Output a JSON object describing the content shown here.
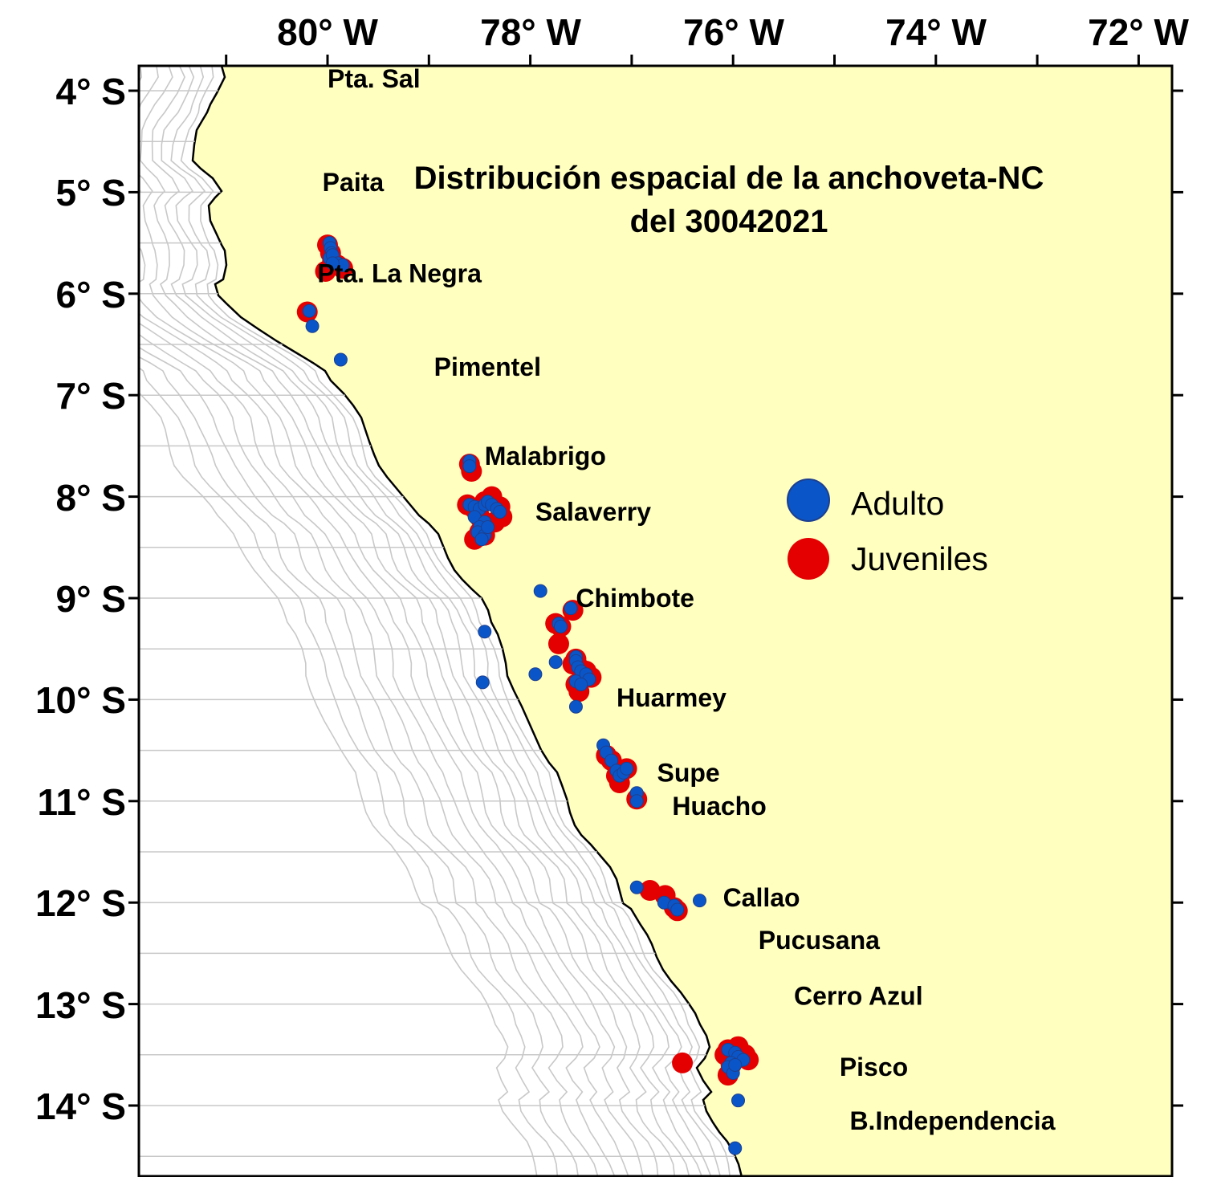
{
  "title": {
    "line1": "Distribución espacial de la anchoveta-NC",
    "line2": "del 30042021"
  },
  "axes": {
    "lon_labels": [
      "80° W",
      "78° W",
      "76° W",
      "74° W",
      "72° W"
    ],
    "lat_labels": [
      "4° S",
      "5° S",
      "6° S",
      "7° S",
      "8° S",
      "9° S",
      "10° S",
      "11° S",
      "12° S",
      "13° S",
      "14° S"
    ]
  },
  "places": [
    {
      "name": "Pta. Sal",
      "lon": -80.0,
      "lat": -3.88
    },
    {
      "name": "Paita",
      "lon": -80.05,
      "lat": -4.9
    },
    {
      "name": "Pta. La Negra",
      "lon": -80.1,
      "lat": -5.8
    },
    {
      "name": "Pimentel",
      "lon": -78.95,
      "lat": -6.72
    },
    {
      "name": "Malabrigo",
      "lon": -78.45,
      "lat": -7.6
    },
    {
      "name": "Salaverry",
      "lon": -77.95,
      "lat": -8.15
    },
    {
      "name": "Chimbote",
      "lon": -77.55,
      "lat": -9.0
    },
    {
      "name": "Huarmey",
      "lon": -77.15,
      "lat": -9.98
    },
    {
      "name": "Supe",
      "lon": -76.75,
      "lat": -10.72
    },
    {
      "name": "Huacho",
      "lon": -76.6,
      "lat": -11.05
    },
    {
      "name": "Callao",
      "lon": -76.1,
      "lat": -11.95
    },
    {
      "name": "Pucusana",
      "lon": -75.75,
      "lat": -12.37
    },
    {
      "name": "Cerro Azul",
      "lon": -75.4,
      "lat": -12.92
    },
    {
      "name": "Pisco",
      "lon": -74.95,
      "lat": -13.62
    },
    {
      "name": "B.Independencia",
      "lon": -74.85,
      "lat": -14.15
    }
  ],
  "legend": {
    "adult_label": "Adulto",
    "juvenile_label": "Juveniles"
  },
  "colors": {
    "land": "#ffffc0",
    "adult": "#0a56c8",
    "adult_outline": "#1d3f8f",
    "juvenile": "#e40000",
    "contour": "#c8c8c8"
  },
  "observations": {
    "juveniles": [
      [
        -80.0,
        -5.52
      ],
      [
        -79.97,
        -5.6
      ],
      [
        -79.95,
        -5.68
      ],
      [
        -79.9,
        -5.72
      ],
      [
        -79.85,
        -5.75
      ],
      [
        -80.02,
        -5.78
      ],
      [
        -80.2,
        -6.18
      ],
      [
        -78.6,
        -7.68
      ],
      [
        -78.58,
        -7.75
      ],
      [
        -78.62,
        -8.08
      ],
      [
        -78.55,
        -8.12
      ],
      [
        -78.5,
        -8.2
      ],
      [
        -78.45,
        -8.05
      ],
      [
        -78.38,
        -8.0
      ],
      [
        -78.3,
        -8.1
      ],
      [
        -78.28,
        -8.2
      ],
      [
        -78.35,
        -8.25
      ],
      [
        -78.5,
        -8.35
      ],
      [
        -78.55,
        -8.42
      ],
      [
        -78.45,
        -8.38
      ],
      [
        -77.58,
        -9.12
      ],
      [
        -77.75,
        -9.25
      ],
      [
        -77.7,
        -9.28
      ],
      [
        -77.72,
        -9.45
      ],
      [
        -77.55,
        -9.6
      ],
      [
        -77.58,
        -9.65
      ],
      [
        -77.5,
        -9.7
      ],
      [
        -77.45,
        -9.72
      ],
      [
        -77.4,
        -9.78
      ],
      [
        -77.55,
        -9.85
      ],
      [
        -77.52,
        -9.92
      ],
      [
        -77.25,
        -10.55
      ],
      [
        -77.2,
        -10.6
      ],
      [
        -77.1,
        -10.7
      ],
      [
        -77.15,
        -10.75
      ],
      [
        -77.12,
        -10.82
      ],
      [
        -77.05,
        -10.68
      ],
      [
        -76.95,
        -10.98
      ],
      [
        -76.82,
        -11.88
      ],
      [
        -76.67,
        -11.93
      ],
      [
        -76.58,
        -12.05
      ],
      [
        -76.55,
        -12.08
      ],
      [
        -76.5,
        -13.58
      ],
      [
        -76.05,
        -13.45
      ],
      [
        -75.95,
        -13.42
      ],
      [
        -75.88,
        -13.5
      ],
      [
        -75.85,
        -13.55
      ],
      [
        -76.02,
        -13.6
      ],
      [
        -76.08,
        -13.5
      ],
      [
        -76.05,
        -13.7
      ]
    ],
    "adults": [
      [
        -79.98,
        -5.5
      ],
      [
        -79.97,
        -5.55
      ],
      [
        -79.96,
        -5.6
      ],
      [
        -79.98,
        -5.65
      ],
      [
        -79.95,
        -5.62
      ],
      [
        -79.9,
        -5.7
      ],
      [
        -79.85,
        -5.72
      ],
      [
        -79.95,
        -5.7
      ],
      [
        -80.18,
        -6.17
      ],
      [
        -80.15,
        -6.32
      ],
      [
        -79.87,
        -6.65
      ],
      [
        -78.6,
        -7.65
      ],
      [
        -78.6,
        -7.7
      ],
      [
        -78.6,
        -8.08
      ],
      [
        -78.55,
        -8.1
      ],
      [
        -78.5,
        -8.12
      ],
      [
        -78.45,
        -8.08
      ],
      [
        -78.42,
        -8.05
      ],
      [
        -78.38,
        -8.08
      ],
      [
        -78.33,
        -8.12
      ],
      [
        -78.3,
        -8.15
      ],
      [
        -78.55,
        -8.2
      ],
      [
        -78.45,
        -8.25
      ],
      [
        -78.5,
        -8.3
      ],
      [
        -78.52,
        -8.35
      ],
      [
        -78.45,
        -8.38
      ],
      [
        -78.48,
        -8.42
      ],
      [
        -78.42,
        -8.3
      ],
      [
        -77.9,
        -8.93
      ],
      [
        -77.6,
        -9.1
      ],
      [
        -77.72,
        -9.25
      ],
      [
        -77.7,
        -9.28
      ],
      [
        -78.45,
        -9.33
      ],
      [
        -78.47,
        -9.83
      ],
      [
        -77.95,
        -9.75
      ],
      [
        -77.75,
        -9.63
      ],
      [
        -77.55,
        -9.58
      ],
      [
        -77.55,
        -9.62
      ],
      [
        -77.53,
        -9.68
      ],
      [
        -77.5,
        -9.72
      ],
      [
        -77.45,
        -9.75
      ],
      [
        -77.42,
        -9.8
      ],
      [
        -77.55,
        -9.82
      ],
      [
        -77.5,
        -9.85
      ],
      [
        -77.55,
        -10.07
      ],
      [
        -77.28,
        -10.45
      ],
      [
        -77.25,
        -10.52
      ],
      [
        -77.2,
        -10.6
      ],
      [
        -77.15,
        -10.7
      ],
      [
        -77.12,
        -10.75
      ],
      [
        -77.08,
        -10.72
      ],
      [
        -77.05,
        -10.68
      ],
      [
        -76.95,
        -10.92
      ],
      [
        -76.95,
        -11.0
      ],
      [
        -76.95,
        -11.85
      ],
      [
        -76.68,
        -12.0
      ],
      [
        -76.58,
        -12.03
      ],
      [
        -76.55,
        -12.07
      ],
      [
        -76.33,
        -11.98
      ],
      [
        -76.05,
        -13.45
      ],
      [
        -75.98,
        -13.48
      ],
      [
        -75.95,
        -13.52
      ],
      [
        -75.9,
        -13.55
      ],
      [
        -76.02,
        -13.58
      ],
      [
        -76.05,
        -13.62
      ],
      [
        -76.0,
        -13.68
      ],
      [
        -75.98,
        -13.6
      ],
      [
        -75.95,
        -13.95
      ],
      [
        -75.98,
        -14.42
      ]
    ]
  }
}
